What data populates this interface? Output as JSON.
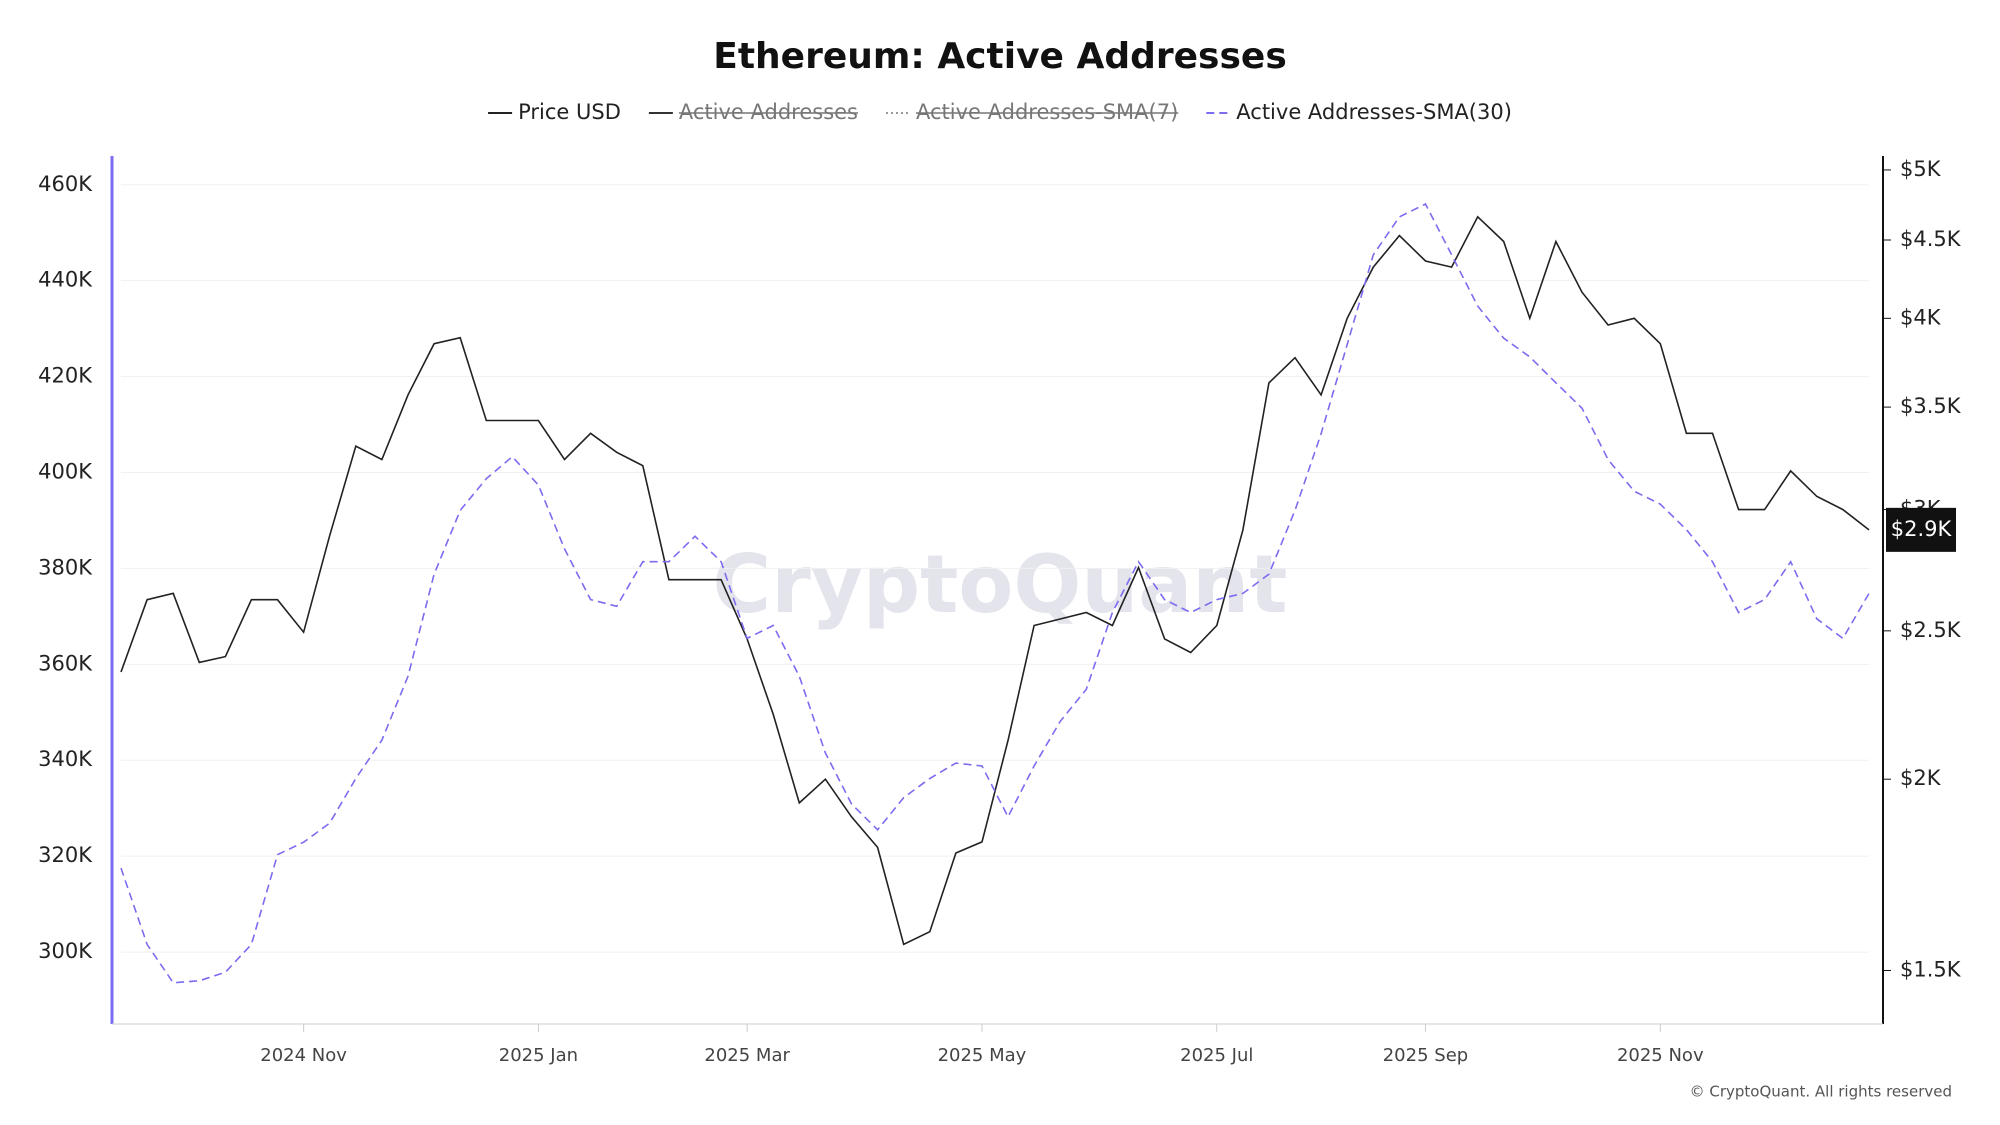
{
  "chart_data": {
    "type": "line",
    "title": "Ethereum: Active Addresses",
    "watermark": "CryptoQuant",
    "copyright": "© CryptoQuant. All rights reserved",
    "current_price_label": "$2.9K",
    "categories": [
      null,
      null,
      null,
      null,
      null,
      null,
      null,
      "2024 Nov",
      null,
      null,
      null,
      null,
      null,
      null,
      null,
      null,
      "2025 Jan",
      null,
      null,
      null,
      null,
      null,
      null,
      null,
      "2025 Mar",
      null,
      null,
      null,
      null,
      null,
      null,
      null,
      null,
      "2025 May",
      null,
      null,
      null,
      null,
      null,
      null,
      null,
      null,
      "2025 Jul",
      null,
      null,
      null,
      null,
      null,
      null,
      null,
      "2025 Sep",
      null,
      null,
      null,
      null,
      null,
      null,
      null,
      null,
      "2025 Nov",
      null,
      null,
      null,
      null,
      null,
      null,
      null,
      null
    ],
    "series": [
      {
        "name": "Price USD",
        "color": "#222222",
        "dash": "solid",
        "axis": "y2",
        "values": [
          2350,
          2620,
          2645,
          2384,
          2405,
          2620,
          2620,
          2495,
          2885,
          3300,
          3235,
          3565,
          3850,
          3885,
          3430,
          3430,
          3430,
          3235,
          3365,
          3270,
          3205,
          2700,
          2700,
          2700,
          2470,
          2205,
          1930,
          2000,
          1890,
          1805,
          1560,
          1590,
          1790,
          1820,
          2120,
          2520,
          2545,
          2570,
          2520,
          2750,
          2470,
          2420,
          2520,
          2910,
          3630,
          3770,
          3565,
          4000,
          4320,
          4530,
          4360,
          4320,
          4660,
          4490,
          4000,
          4490,
          4160,
          3960,
          4000,
          3850,
          3365,
          3365,
          3000,
          3000,
          3180,
          3060,
          3000,
          2910
        ]
      },
      {
        "name": "Active Addresses",
        "color": "#333333",
        "dash": "solid",
        "hidden": true
      },
      {
        "name": "Active Addresses-SMA(7)",
        "color": "#999999",
        "dash": "dotted",
        "hidden": true
      },
      {
        "name": "Active Addresses-SMA(30)",
        "color": "#7b6cf0",
        "dash": "dashed",
        "values": [
          317500,
          301600,
          293600,
          294000,
          295800,
          301600,
          320300,
          322900,
          326900,
          336200,
          344200,
          357500,
          378800,
          392100,
          398700,
          403300,
          397400,
          384100,
          373500,
          372100,
          381400,
          381400,
          386700,
          381400,
          365400,
          368100,
          357500,
          341500,
          330900,
          325500,
          332200,
          336200,
          339400,
          338800,
          328200,
          338800,
          348100,
          354800,
          370800,
          381400,
          373500,
          370800,
          373500,
          374800,
          378800,
          392100,
          408100,
          426700,
          445400,
          453300,
          456000,
          445400,
          434700,
          428000,
          424100,
          418700,
          413400,
          402700,
          396100,
          393400,
          388100,
          381400,
          370800,
          373500,
          381400,
          369500,
          365400,
          374800
        ]
      }
    ],
    "ylim": [
      285000,
      466000
    ],
    "yticks": [
      {
        "value": 300000,
        "label": "300K"
      },
      {
        "value": 320000,
        "label": "320K"
      },
      {
        "value": 340000,
        "label": "340K"
      },
      {
        "value": 360000,
        "label": "360K"
      },
      {
        "value": 380000,
        "label": "380K"
      },
      {
        "value": 400000,
        "label": "400K"
      },
      {
        "value": 420000,
        "label": "420K"
      },
      {
        "value": 440000,
        "label": "440K"
      },
      {
        "value": 460000,
        "label": "460K"
      }
    ],
    "y2lim": [
      1384,
      5106
    ],
    "y2log": true,
    "y2ticks": [
      {
        "value": 1500,
        "label": "$1.5K"
      },
      {
        "value": 2000,
        "label": "$2K"
      },
      {
        "value": 2500,
        "label": "$2.5K"
      },
      {
        "value": 3000,
        "label": "$3K"
      },
      {
        "value": 3500,
        "label": "$3.5K"
      },
      {
        "value": 4000,
        "label": "$4K"
      },
      {
        "value": 4500,
        "label": "$4.5K"
      },
      {
        "value": 5000,
        "label": "$5K"
      }
    ],
    "grid": true,
    "left_axis_color": "#7b6cf0",
    "right_axis_color": "#111111"
  }
}
